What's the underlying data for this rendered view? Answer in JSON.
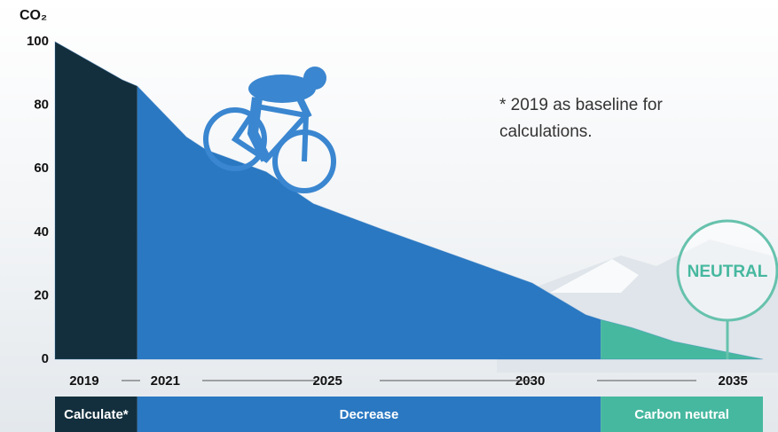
{
  "chart_data": {
    "type": "area",
    "y_label": "CO₂",
    "note": "* 2019 as baseline for calculations.",
    "badge": "NEUTRAL",
    "x": [
      2018.28,
      2019.94,
      2020.31,
      2021.52,
      2022.0,
      2023.49,
      2024.65,
      2026.33,
      2030.05,
      2031.37,
      2031.74,
      2032.5,
      2033.55,
      2034.17,
      2035.74
    ],
    "values": [
      100,
      88,
      86,
      70,
      66,
      59,
      49,
      41,
      24,
      14,
      12.5,
      10,
      5.6,
      4,
      0
    ],
    "color": "#2a78c2",
    "xlim": [
      2018.28,
      2035.74
    ],
    "xticks": [
      2019,
      2021,
      2025,
      2030,
      2035
    ],
    "ylim": [
      0,
      100
    ],
    "yticks": [
      0,
      20,
      40,
      60,
      80,
      100
    ],
    "phases": [
      {
        "name": "Calculate*",
        "color": "#132f3d",
        "from": 2018.28,
        "to": 2020.31
      },
      {
        "name": "Decrease",
        "color": "#2a78c2",
        "from": 2020.31,
        "to": 2031.74
      },
      {
        "name": "Carbon neutral",
        "color": "#46b89f",
        "from": 2031.74,
        "to": 2035.74
      }
    ]
  }
}
